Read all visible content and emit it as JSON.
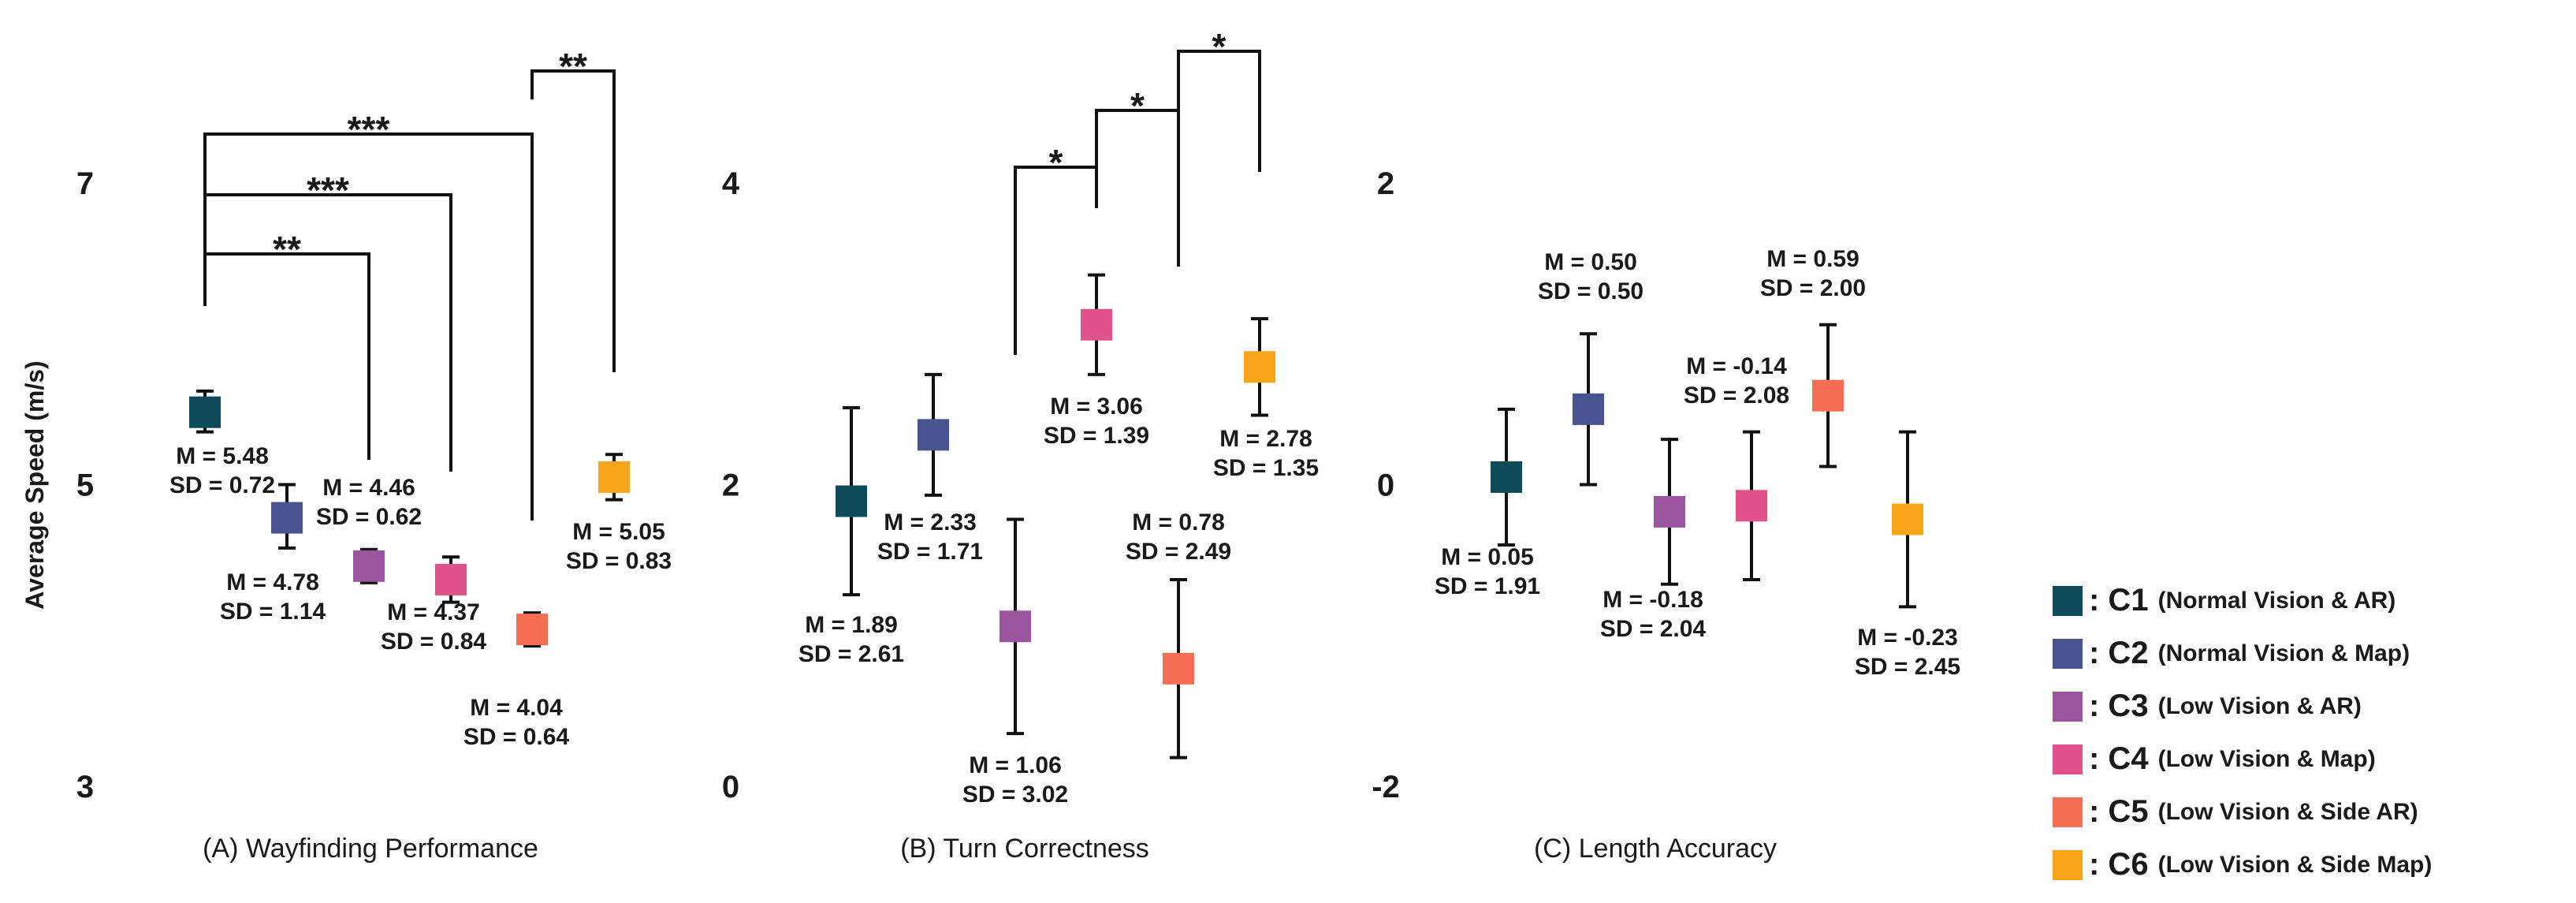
{
  "chart_data": [
    {
      "type": "scatter",
      "title": "(A) Wayfinding Performance",
      "ylabel": "Average Speed (m/s)",
      "ylim": [
        3,
        7
      ],
      "yticks": [
        "3",
        "5",
        "7"
      ],
      "points": [
        {
          "cond": "C1",
          "mean": 5.48,
          "sd": 0.72,
          "m_label": "M = 5.48",
          "sd_label": "SD = 0.72",
          "err_lo": 5.35,
          "err_hi": 5.62
        },
        {
          "cond": "C2",
          "mean": 4.78,
          "sd": 1.14,
          "m_label": "M = 4.78",
          "sd_label": "SD = 1.14",
          "err_lo": 4.58,
          "err_hi": 5.0
        },
        {
          "cond": "C3",
          "mean": 4.46,
          "sd": 0.62,
          "m_label": "M = 4.46",
          "sd_label": "SD = 0.62",
          "err_lo": 4.35,
          "err_hi": 4.57
        },
        {
          "cond": "C4",
          "mean": 4.37,
          "sd": 0.84,
          "m_label": "M = 4.37",
          "sd_label": "SD = 0.84",
          "err_lo": 4.22,
          "err_hi": 4.52
        },
        {
          "cond": "C5",
          "mean": 4.04,
          "sd": 0.64,
          "m_label": "M = 4.04",
          "sd_label": "SD = 0.64",
          "err_lo": 3.93,
          "err_hi": 4.15
        },
        {
          "cond": "C6",
          "mean": 5.05,
          "sd": 0.83,
          "m_label": "M = 5.05",
          "sd_label": "SD = 0.83",
          "err_lo": 4.9,
          "err_hi": 5.2
        }
      ],
      "significance": [
        {
          "from": "C1",
          "to": "C3",
          "label": "**"
        },
        {
          "from": "C1",
          "to": "C4",
          "label": "***"
        },
        {
          "from": "C1",
          "to": "C5",
          "label": "***"
        },
        {
          "from": "C5",
          "to": "C6",
          "label": "**"
        }
      ]
    },
    {
      "type": "scatter",
      "title": "(B) Turn Correctness",
      "ylabel": "",
      "ylim": [
        0,
        4
      ],
      "yticks": [
        "0",
        "2",
        "4"
      ],
      "points": [
        {
          "cond": "C1",
          "mean": 1.89,
          "sd": 2.61,
          "m_label": "M = 1.89",
          "sd_label": "SD = 2.61",
          "err_lo": 1.27,
          "err_hi": 2.51
        },
        {
          "cond": "C2",
          "mean": 2.33,
          "sd": 1.71,
          "m_label": "M = 2.33",
          "sd_label": "SD = 1.71",
          "err_lo": 1.93,
          "err_hi": 2.73
        },
        {
          "cond": "C3",
          "mean": 1.06,
          "sd": 3.02,
          "m_label": "M = 1.06",
          "sd_label": "SD = 3.02",
          "err_lo": 0.35,
          "err_hi": 1.77
        },
        {
          "cond": "C4",
          "mean": 3.06,
          "sd": 1.39,
          "m_label": "M = 3.06",
          "sd_label": "SD = 1.39",
          "err_lo": 2.73,
          "err_hi": 3.39
        },
        {
          "cond": "C5",
          "mean": 0.78,
          "sd": 2.49,
          "m_label": "M = 0.78",
          "sd_label": "SD = 2.49",
          "err_lo": 0.19,
          "err_hi": 1.37
        },
        {
          "cond": "C6",
          "mean": 2.78,
          "sd": 1.35,
          "m_label": "M = 2.78",
          "sd_label": "SD = 1.35",
          "err_lo": 2.46,
          "err_hi": 3.1
        }
      ],
      "significance": [
        {
          "from": "C3",
          "to": "C4",
          "label": "*"
        },
        {
          "from": "C4",
          "to": "C5",
          "label": "*"
        },
        {
          "from": "C5",
          "to": "C6",
          "label": "*"
        }
      ]
    },
    {
      "type": "scatter",
      "title": "(C) Length Accuracy",
      "ylabel": "",
      "ylim": [
        -2,
        2
      ],
      "yticks": [
        "-2",
        "0",
        "2"
      ],
      "points": [
        {
          "cond": "C1",
          "mean": 0.05,
          "sd": 1.91,
          "m_label": "M = 0.05",
          "sd_label": "SD = 1.91",
          "err_lo": -0.4,
          "err_hi": 0.5
        },
        {
          "cond": "C2",
          "mean": 0.5,
          "sd": 0.5,
          "m_label": "M = 0.50",
          "sd_label": "SD = 0.50",
          "err_lo": 0.0,
          "err_hi": 1.0
        },
        {
          "cond": "C3",
          "mean": -0.18,
          "sd": 2.04,
          "m_label": "M = -0.18",
          "sd_label": "SD = 2.04",
          "err_lo": -0.66,
          "err_hi": 0.3
        },
        {
          "cond": "C4",
          "mean": -0.14,
          "sd": 2.08,
          "m_label": "M = -0.14",
          "sd_label": "SD = 2.08",
          "err_lo": -0.63,
          "err_hi": 0.35
        },
        {
          "cond": "C5",
          "mean": 0.59,
          "sd": 2.0,
          "m_label": "M = 0.59",
          "sd_label": "SD = 2.00",
          "err_lo": 0.12,
          "err_hi": 1.06
        },
        {
          "cond": "C6",
          "mean": -0.23,
          "sd": 2.45,
          "m_label": "M = -0.23",
          "sd_label": "SD = 2.45",
          "err_lo": -0.81,
          "err_hi": 0.35
        }
      ],
      "significance": []
    }
  ],
  "legend": [
    {
      "code": "C1",
      "label": ": C1",
      "desc": "(Normal Vision & AR)",
      "color": "#0d4a5a"
    },
    {
      "code": "C2",
      "label": ": C2",
      "desc": "(Normal Vision & Map)",
      "color": "#4a5290"
    },
    {
      "code": "C3",
      "label": ": C3",
      "desc": "(Low Vision & AR)",
      "color": "#9b559f"
    },
    {
      "code": "C4",
      "label": ": C4",
      "desc": "(Low Vision & Map)",
      "color": "#e0538a"
    },
    {
      "code": "C5",
      "label": ": C5",
      "desc": "(Low Vision & Side AR)",
      "color": "#f56e54"
    },
    {
      "code": "C6",
      "label": ": C6",
      "desc": "(Low Vision & Side Map)",
      "color": "#f9a51a"
    }
  ]
}
